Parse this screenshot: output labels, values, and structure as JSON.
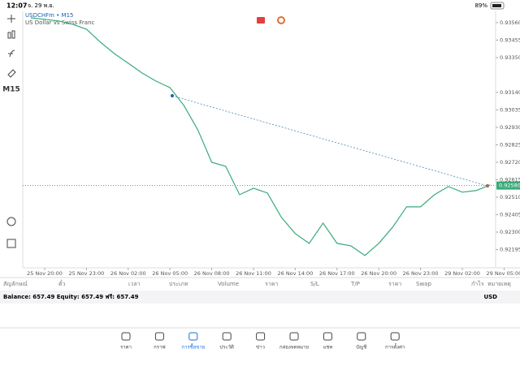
{
  "status_bar": {
    "time": "12:07",
    "date": "จ. 29 พ.ย.",
    "battery": "89%"
  },
  "toolbar": {
    "timeframe": "M15"
  },
  "chart": {
    "type": "line",
    "title": "USDCHFm • M15",
    "description": "US Dollar vs Swiss Franc",
    "ylim": [
      0.92085,
      0.93628
    ],
    "yticks": [
      {
        "value": 0.9356,
        "label": "0.93560"
      },
      {
        "value": 0.93455,
        "label": "0.93455"
      },
      {
        "value": 0.9335,
        "label": "0.93350"
      },
      {
        "value": 0.9314,
        "label": "0.93140"
      },
      {
        "value": 0.93035,
        "label": "0.93035"
      },
      {
        "value": 0.9293,
        "label": "0.92930"
      },
      {
        "value": 0.92825,
        "label": "0.92825"
      },
      {
        "value": 0.9272,
        "label": "0.92720"
      },
      {
        "value": 0.92615,
        "label": "0.92615"
      },
      {
        "value": 0.9251,
        "label": "0.92510"
      },
      {
        "value": 0.92405,
        "label": "0.92405"
      },
      {
        "value": 0.923,
        "label": "0.92300"
      },
      {
        "value": 0.92195,
        "label": "0.92195"
      }
    ],
    "xticks": [
      "25 Nov 20:00",
      "25 Nov 23:00",
      "26 Nov 02:00",
      "26 Nov 05:00",
      "26 Nov 08:00",
      "26 Nov 11:00",
      "26 Nov 14:00",
      "26 Nov 17:00",
      "26 Nov 20:00",
      "26 Nov 23:00",
      "29 Nov 02:00",
      "29 Nov 05:00"
    ],
    "series": [
      {
        "color": "#3aaa7a",
        "values": [
          0.93589,
          0.9358,
          0.9357,
          0.9355,
          0.93521,
          0.93443,
          0.93374,
          0.93316,
          0.93257,
          0.93208,
          0.93169,
          0.93062,
          0.92915,
          0.9272,
          0.92696,
          0.92525,
          0.92564,
          0.92535,
          0.92389,
          0.92291,
          0.92232,
          0.92354,
          0.92232,
          0.92217,
          0.92159,
          0.92232,
          0.9233,
          0.92452,
          0.92452,
          0.92525,
          0.92574,
          0.9254,
          0.9255,
          0.92584
        ]
      }
    ],
    "current_price": {
      "value": 0.9258,
      "label": "0.92580"
    }
  },
  "positions_table": {
    "columns": [
      "สัญลักษณ์",
      "ตั๋ว",
      "เวลา",
      "ประเภท",
      "Volume",
      "ราคา",
      "S/L",
      "T/P",
      "ราคา",
      "Swap",
      "กำไร",
      "หมายเหตุ"
    ],
    "balance": "Balance: 657.49 Equity: 657.49 ฟรี: 657.49",
    "currency": "USD"
  },
  "tabs": [
    "ราคา",
    "กราฟ",
    "การซื้อขาย",
    "ประวัติ",
    "ข่าว",
    "กล่องจดหมาย",
    "แชท",
    "บัญชี",
    "การตั้งค่า"
  ],
  "active_tab": 2
}
